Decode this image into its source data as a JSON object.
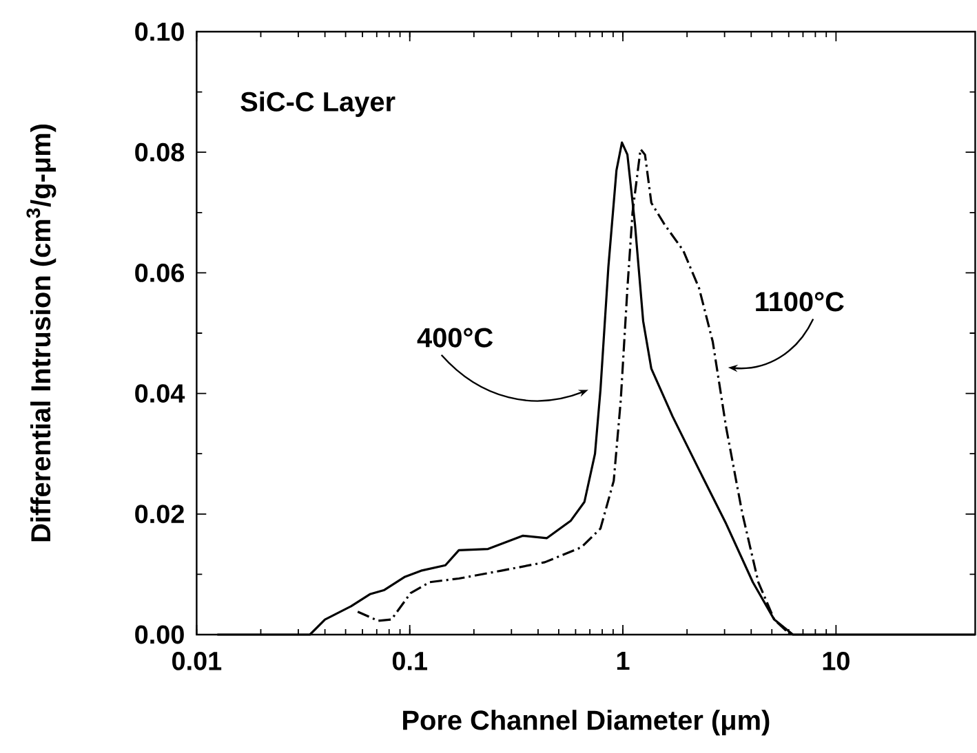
{
  "chart_data": {
    "type": "line",
    "xlabel": "Pore Channel Diameter (μm)",
    "ylabel": "Differential Intrusion (cm$^{3}$/g-μm)",
    "log": "x",
    "xlim": [
      0.01,
      45
    ],
    "ylim": [
      0,
      0.1
    ],
    "xticks": [
      0.01,
      0.1,
      1,
      10
    ],
    "yticks": [
      {
        "value": 0,
        "label": "0.00"
      },
      {
        "value": 0.02,
        "label": "0.02"
      },
      {
        "value": 0.04,
        "label": "0.04"
      },
      {
        "value": 0.06,
        "label": "0.06"
      },
      {
        "value": 0.08,
        "label": "0.08"
      },
      {
        "value": 0.1,
        "label": "0.10"
      }
    ],
    "grid": false,
    "marker": "none",
    "series": [
      {
        "color": "#000000",
        "line_style": "solid",
        "x": [
          0.0125,
          0.034,
          0.04,
          0.053,
          0.065,
          0.076,
          0.095,
          0.113,
          0.147,
          0.17,
          0.233,
          0.34,
          0.44,
          0.57,
          0.66,
          0.74,
          0.785,
          0.855,
          0.933,
          0.99,
          1.05,
          1.14,
          1.245,
          1.36,
          1.71,
          2.28,
          3.05,
          4.07,
          5.13,
          6.28,
          45
        ],
        "values": [
          0,
          0,
          0.0025,
          0.0047,
          0.0067,
          0.0074,
          0.0096,
          0.0106,
          0.0115,
          0.014,
          0.0142,
          0.0164,
          0.016,
          0.0189,
          0.022,
          0.03,
          0.0406,
          0.061,
          0.077,
          0.0816,
          0.0796,
          0.068,
          0.052,
          0.0441,
          0.0362,
          0.0273,
          0.0184,
          0.0087,
          0.0025,
          0,
          0
        ]
      },
      {
        "color": "#000000",
        "line_style": "dashdot",
        "x": [
          0.057,
          0.071,
          0.082,
          0.101,
          0.124,
          0.17,
          0.269,
          0.43,
          0.64,
          0.785,
          0.906,
          0.977,
          1.05,
          1.11,
          1.21,
          1.27,
          1.36,
          1.57,
          1.92,
          2.28,
          2.64,
          3.05,
          3.63,
          4.32,
          5.13,
          6.1
        ],
        "values": [
          0.0038,
          0.0023,
          0.0025,
          0.0069,
          0.0087,
          0.0093,
          0.0106,
          0.012,
          0.0145,
          0.0176,
          0.0255,
          0.0388,
          0.0574,
          0.07,
          0.0805,
          0.0796,
          0.0716,
          0.068,
          0.0637,
          0.0574,
          0.0486,
          0.0344,
          0.0202,
          0.0087,
          0.0025,
          0
        ]
      }
    ],
    "annotations": [
      "SiC-C Layer",
      {
        "text": "400°C",
        "x": 0.72,
        "y": 0.0406
      },
      {
        "text": "1100°C",
        "x": 2.98,
        "y": 0.0443
      }
    ]
  }
}
